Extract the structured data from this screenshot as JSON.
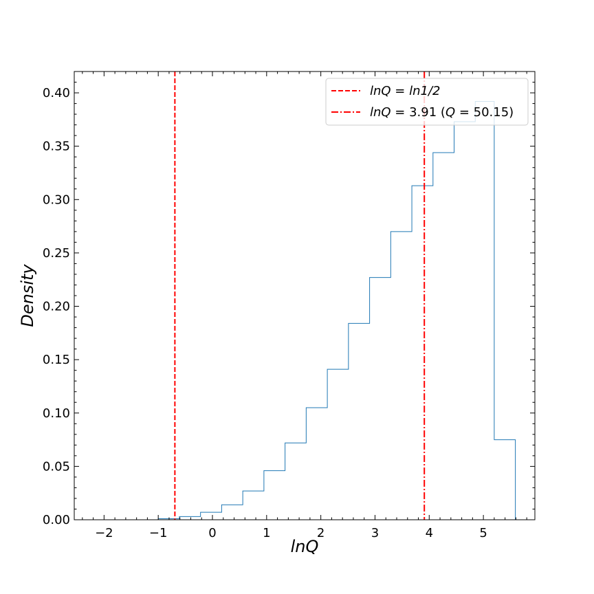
{
  "chart_data": {
    "type": "histogram",
    "xlabel": "lnQ",
    "ylabel": "Density",
    "xlim": [
      -2.55,
      5.95
    ],
    "ylim": [
      0.0,
      0.42
    ],
    "xticks": [
      -2,
      -1,
      0,
      1,
      2,
      3,
      4,
      5
    ],
    "xtick_labels": [
      "−2",
      "−1",
      "0",
      "1",
      "2",
      "3",
      "4",
      "5"
    ],
    "yticks": [
      0.0,
      0.05,
      0.1,
      0.15,
      0.2,
      0.25,
      0.3,
      0.35,
      0.4
    ],
    "ytick_labels": [
      "0.00",
      "0.05",
      "0.10",
      "0.15",
      "0.20",
      "0.25",
      "0.30",
      "0.35",
      "0.40"
    ],
    "bin_edges": [
      -1.0,
      -0.61,
      -0.22,
      0.17,
      0.56,
      0.95,
      1.34,
      1.73,
      2.12,
      2.51,
      2.9,
      3.29,
      3.68,
      4.07,
      4.46,
      4.85,
      5.2,
      5.59
    ],
    "densities": [
      0.001,
      0.003,
      0.007,
      0.014,
      0.027,
      0.046,
      0.072,
      0.105,
      0.141,
      0.184,
      0.227,
      0.27,
      0.313,
      0.344,
      0.373,
      0.392,
      0.075
    ],
    "histogram_color": "#1f77b4",
    "vlines": [
      {
        "x": -0.693,
        "style": "dashed",
        "color": "#ff0000",
        "label_lhs": "lnQ",
        "label_rhs": "ln1/2"
      },
      {
        "x": 3.91,
        "style": "dashdot",
        "color": "#ff0000",
        "label_lhs": "lnQ",
        "label_rhs": "3.91",
        "label_paren_var": "Q",
        "label_paren_val": "50.15"
      }
    ],
    "legend_placement": "top-right",
    "grid": false
  }
}
